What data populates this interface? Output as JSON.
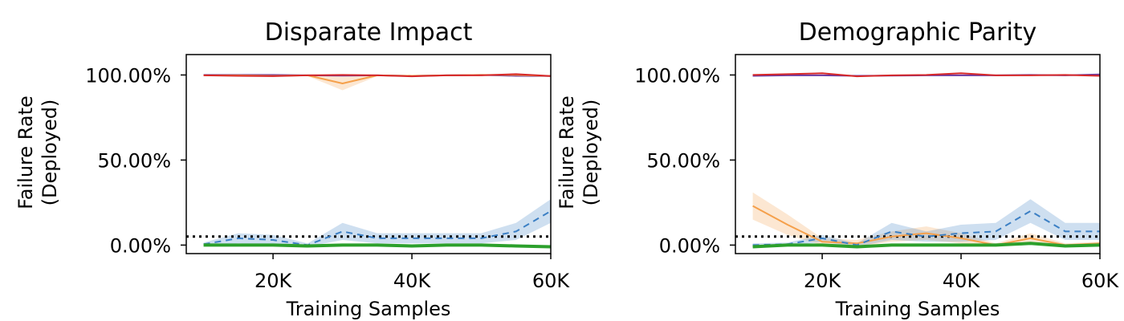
{
  "chart_data": [
    {
      "type": "line",
      "title": "Disparate Impact",
      "xlabel": "Training Samples",
      "ylabel": "Failure Rate\n(Deployed)",
      "xlim": [
        7500,
        60000
      ],
      "ylim": [
        -5,
        112
      ],
      "xticks": [
        20000,
        40000,
        60000
      ],
      "xtick_labels": [
        "20K",
        "40K",
        "60K"
      ],
      "yticks": [
        0,
        50,
        100
      ],
      "ytick_labels": [
        "0.00%",
        "50.00%",
        "100.00%"
      ],
      "threshold": 5,
      "x": [
        10000,
        15000,
        20000,
        25000,
        30000,
        35000,
        40000,
        45000,
        50000,
        55000,
        60000
      ],
      "series": [
        {
          "color": "#6a3aa3",
          "dash": "",
          "width": 2,
          "values": [
            100,
            100,
            100,
            99.8,
            99.6,
            99.8,
            99.5,
            99.8,
            100,
            99.5,
            99.4
          ],
          "band": [
            0,
            0.3,
            0.3,
            0.3,
            0.3,
            0.3,
            0.3,
            0.3,
            0.3,
            0.3,
            0.3
          ]
        },
        {
          "color": "#f5a04b",
          "dash": "",
          "width": 2,
          "values": [
            99.8,
            99.8,
            99.5,
            99.8,
            95,
            99.8,
            99.5,
            99.8,
            100,
            100,
            99.4
          ],
          "band": [
            0.2,
            0.2,
            0.2,
            0.5,
            4,
            0.5,
            0.2,
            0.2,
            0.2,
            0.2,
            0.2
          ]
        },
        {
          "color": "#d62728",
          "dash": "",
          "width": 2,
          "values": [
            99.8,
            99.5,
            99.3,
            99.8,
            100,
            99.8,
            99.2,
            99.8,
            99.8,
            100.5,
            99.4
          ],
          "band": [
            0.3,
            0.3,
            0.3,
            0.3,
            0.3,
            0.3,
            0.3,
            0.3,
            0.3,
            0.3,
            0.3
          ]
        },
        {
          "color": "#3b7fc4",
          "dash": "8,6",
          "width": 2,
          "values": [
            0.5,
            4,
            3,
            0,
            8,
            4,
            4,
            4,
            4,
            8,
            20
          ],
          "band": [
            1,
            3,
            3,
            1,
            5,
            3,
            3,
            3,
            3,
            5,
            7
          ]
        },
        {
          "color": "#2ca02c",
          "dash": "",
          "width": 4,
          "values": [
            0,
            0,
            0,
            -0.5,
            0,
            0,
            -0.5,
            0,
            0,
            -0.5,
            -1
          ],
          "band": [
            0.5,
            0.5,
            0.5,
            0.5,
            0.5,
            0.5,
            0.5,
            0.5,
            0.5,
            0.5,
            0.5
          ]
        }
      ]
    },
    {
      "type": "line",
      "title": "Demographic Parity",
      "xlabel": "Training Samples",
      "ylabel": "Failure Rate\n(Deployed)",
      "xlim": [
        7500,
        60000
      ],
      "ylim": [
        -5,
        112
      ],
      "xticks": [
        20000,
        40000,
        60000
      ],
      "xtick_labels": [
        "20K",
        "40K",
        "60K"
      ],
      "yticks": [
        0,
        50,
        100
      ],
      "ytick_labels": [
        "0.00%",
        "50.00%",
        "100.00%"
      ],
      "threshold": 5,
      "x": [
        10000,
        15000,
        20000,
        25000,
        30000,
        35000,
        40000,
        45000,
        50000,
        55000,
        60000
      ],
      "series": [
        {
          "color": "#6a3aa3",
          "dash": "",
          "width": 2,
          "values": [
            99.5,
            99.8,
            99.8,
            99.5,
            99.6,
            99.8,
            99.8,
            99.8,
            100,
            99.8,
            100.3
          ],
          "band": [
            0.3,
            0.3,
            0.3,
            0.3,
            0.3,
            0.3,
            0.3,
            0.3,
            0.3,
            0.3,
            0.3
          ]
        },
        {
          "color": "#f5a04b",
          "dash": "",
          "width": 2,
          "values": [
            23,
            12,
            2,
            1,
            5,
            7,
            4,
            0,
            4,
            0,
            1
          ],
          "band": [
            8,
            6,
            2,
            2,
            3,
            4,
            3,
            1,
            3,
            1,
            1
          ]
        },
        {
          "color": "#d62728",
          "dash": "",
          "width": 2,
          "values": [
            100,
            100.5,
            101,
            99.2,
            99.8,
            100,
            101,
            99.8,
            99.8,
            100,
            99.5
          ],
          "band": [
            0.3,
            0.3,
            0.3,
            0.3,
            0.3,
            0.3,
            0.3,
            0.3,
            0.3,
            0.3,
            0.3
          ]
        },
        {
          "color": "#3b7fc4",
          "dash": "8,6",
          "width": 2,
          "values": [
            0,
            0.5,
            4,
            0,
            8,
            5,
            7,
            8,
            20,
            8,
            8
          ],
          "band": [
            1,
            1,
            2,
            1,
            5,
            3,
            5,
            5,
            7,
            5,
            5
          ]
        },
        {
          "color": "#2ca02c",
          "dash": "",
          "width": 4,
          "values": [
            -1,
            0,
            0,
            -1,
            0,
            0,
            0,
            0,
            1,
            -0.5,
            0
          ],
          "band": [
            0.5,
            0.5,
            0.5,
            0.5,
            0.5,
            0.5,
            0.5,
            0.5,
            0.5,
            0.5,
            0.5
          ]
        }
      ]
    }
  ]
}
